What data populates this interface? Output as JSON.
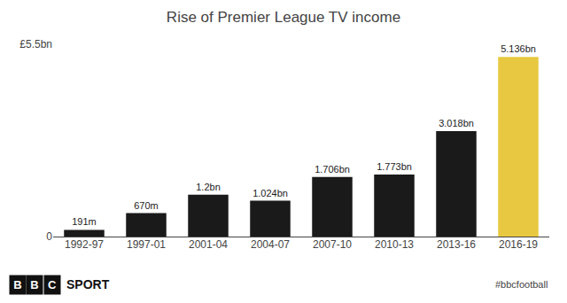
{
  "chart_data": {
    "type": "bar",
    "title": "Rise of Premier League TV income",
    "categories": [
      "1992-97",
      "1997-01",
      "2001-04",
      "2004-07",
      "2007-10",
      "2010-13",
      "2013-16",
      "2016-19"
    ],
    "values": [
      0.191,
      0.67,
      1.2,
      1.024,
      1.706,
      1.773,
      3.018,
      5.136
    ],
    "value_labels": [
      "191m",
      "670m",
      "1.2bn",
      "1.024bn",
      "1.706bn",
      "1.773bn",
      "3.018bn",
      "5.136bn"
    ],
    "data_labels": true,
    "colors": [
      "#1a1a1a",
      "#1a1a1a",
      "#1a1a1a",
      "#1a1a1a",
      "#1a1a1a",
      "#1a1a1a",
      "#1a1a1a",
      "#e8c840"
    ],
    "ylim": [
      0,
      5.5
    ],
    "yticks": [
      0,
      {
        "value": 5.5,
        "label": "£5.5bn"
      }
    ],
    "grid": false,
    "annotations": [
      "B",
      "B",
      "C",
      "SPORT",
      "#bbcfootball"
    ]
  }
}
